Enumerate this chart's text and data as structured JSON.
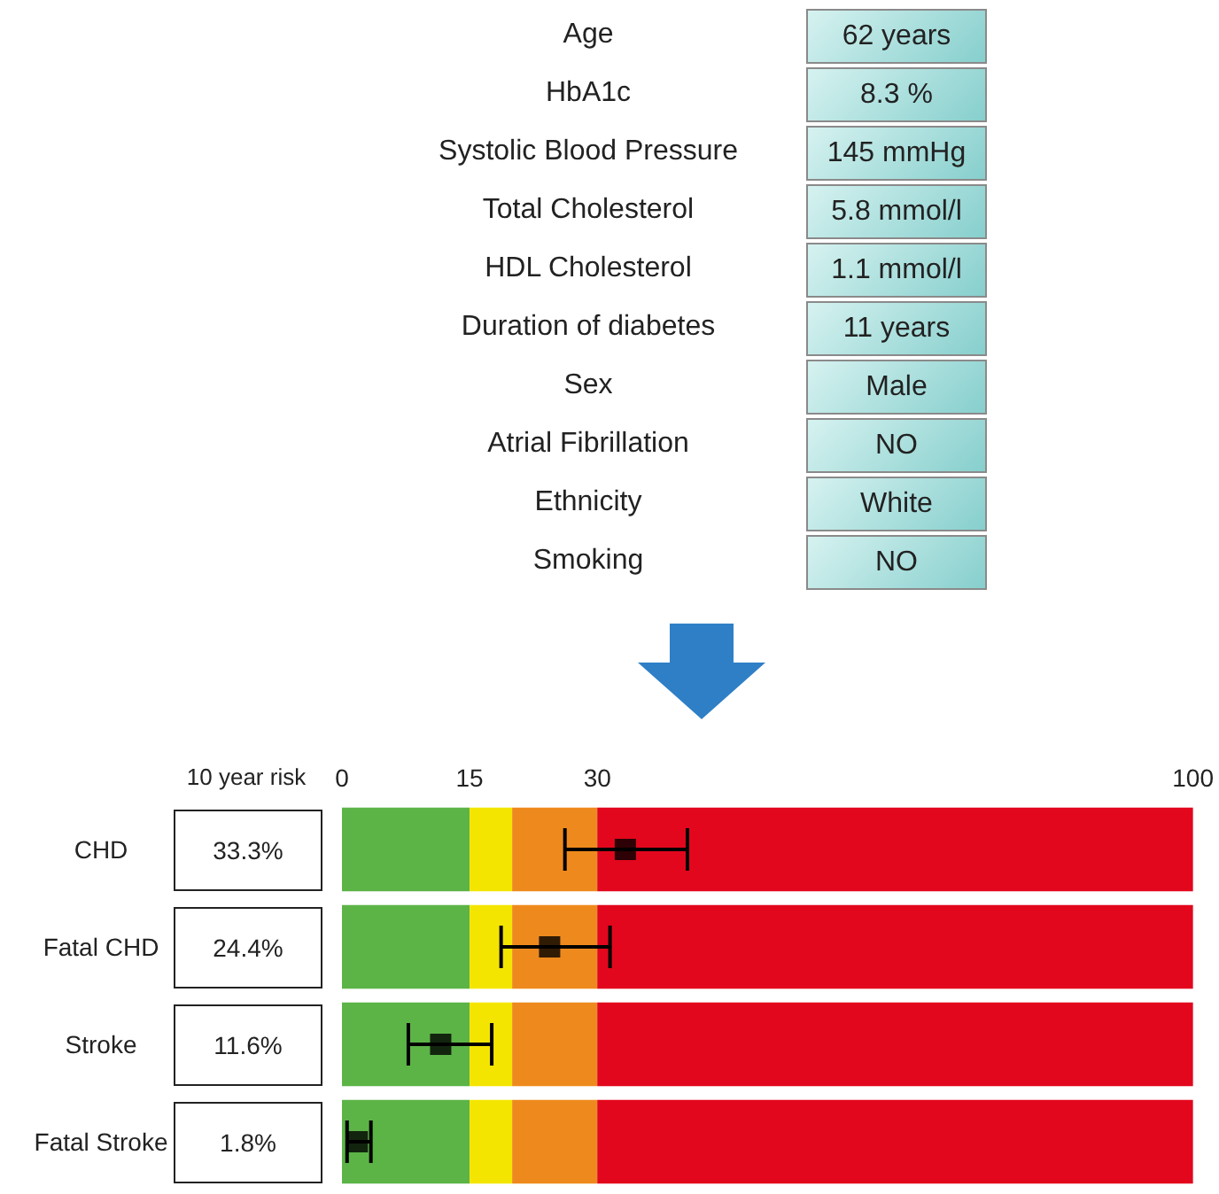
{
  "chart_data": [
    {
      "type": "other",
      "categories": [
        "Age",
        "HbA1c",
        "Systolic Blood Pressure",
        "Total Cholesterol",
        "HDL Cholesterol",
        "Duration of diabetes",
        "Sex",
        "Atrial Fibrillation",
        "Ethnicity",
        "Smoking"
      ],
      "annotations": [
        "62 years",
        "8.3 %",
        "145 mmHg",
        "5.8 mmol/l",
        "1.1 mmol/l",
        "11 years",
        "Male",
        "NO",
        "White",
        "NO"
      ]
    },
    {
      "type": "bar",
      "orientation": "horizontal",
      "stacked": true,
      "categories": [
        "CHD",
        "Fatal CHD",
        "Stroke",
        "Fatal Stroke"
      ],
      "series": [
        {
          "color": "#5cb447",
          "values": [
            15,
            15,
            15,
            15
          ]
        },
        {
          "color": "#f4e500",
          "values": [
            5,
            5,
            5,
            5
          ]
        },
        {
          "color": "#ee8a1d",
          "values": [
            10,
            10,
            10,
            10
          ]
        },
        {
          "color": "#e2071d",
          "values": [
            70,
            70,
            70,
            70
          ]
        },
        {
          "type": "scatter",
          "color": "#000000",
          "marker": "square",
          "values": [
            33.3,
            24.4,
            11.6,
            1.8
          ],
          "value_labels": [
            "33.3%",
            "24.4%",
            "11.6%",
            "1.8%"
          ],
          "errors": [
            [
              26.2,
              40.6
            ],
            [
              18.7,
              31.5
            ],
            [
              7.8,
              17.6
            ],
            [
              0.6,
              3.4
            ]
          ]
        }
      ],
      "xlim": [
        0,
        100
      ],
      "xticks": [
        0,
        15,
        30,
        100
      ],
      "annotations": [
        "10 year risk"
      ]
    }
  ]
}
